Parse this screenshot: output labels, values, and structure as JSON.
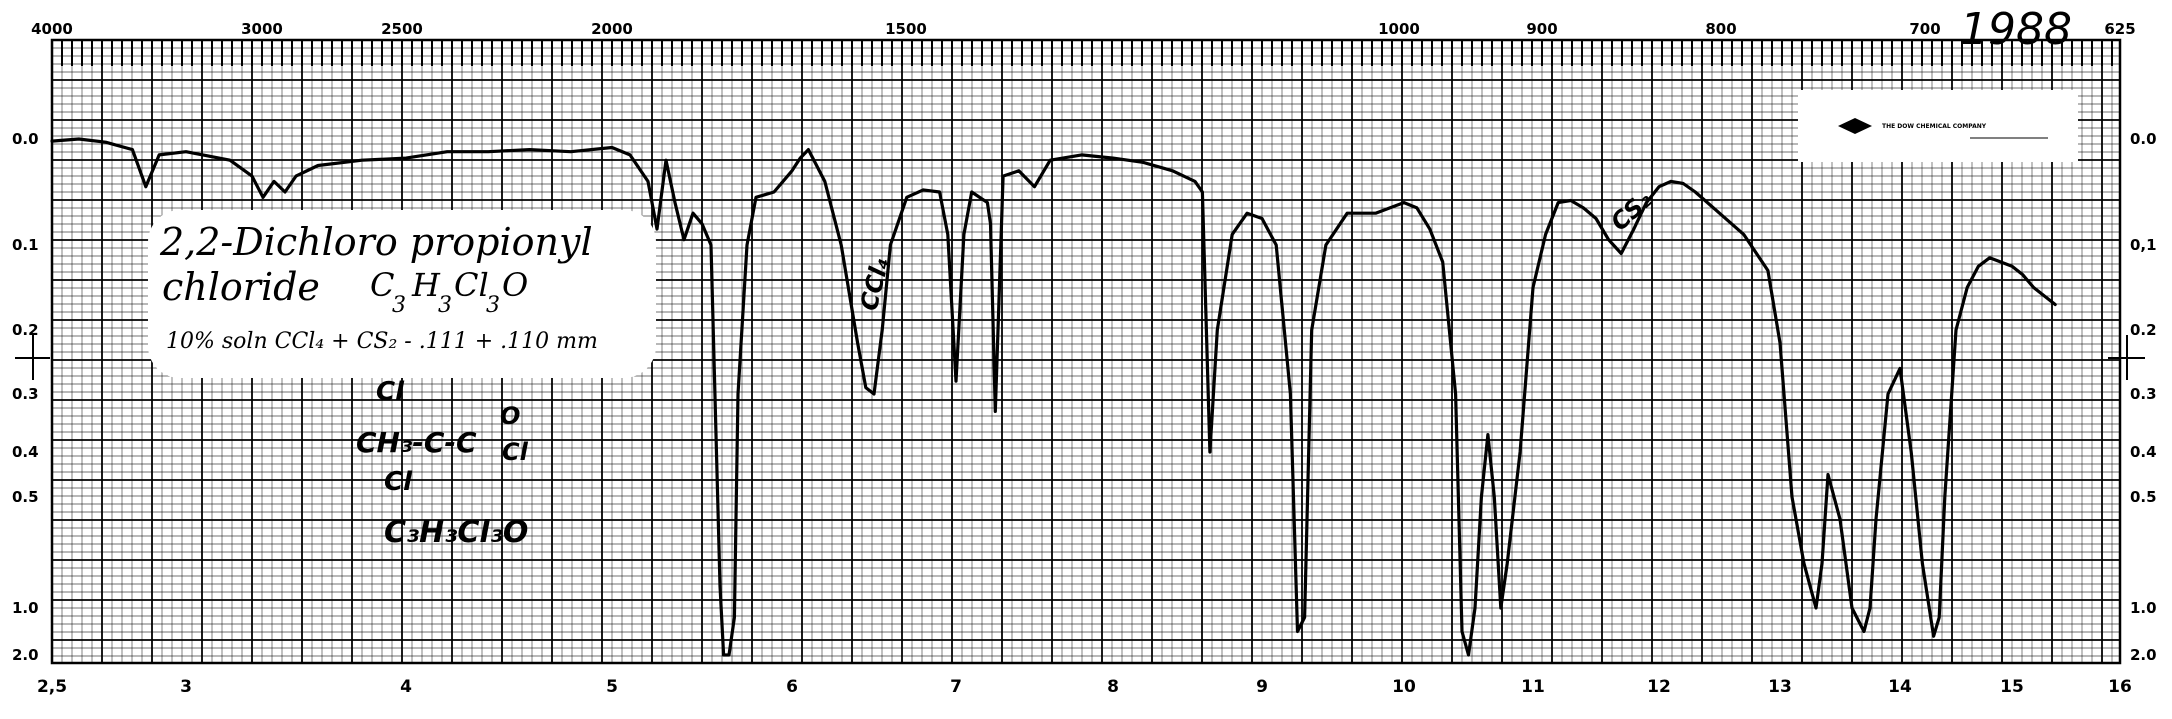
{
  "chart_data": {
    "type": "line",
    "x_bottom_ticks": [
      "2,5",
      "3",
      "4",
      "5",
      "6",
      "7",
      "8",
      "9",
      "10",
      "11",
      "12",
      "13",
      "14",
      "15",
      "16"
    ],
    "x_top_ticks": [
      "4000",
      "3000",
      "2500",
      "2000",
      "1500",
      "1000",
      "900",
      "800",
      "700",
      "625"
    ],
    "y_left_ticks": [
      "0.0",
      "0.1",
      "0.2",
      "0.3",
      "0.4",
      "0.5",
      "1.0",
      "2.0"
    ],
    "y_right_ticks": [
      "0.0",
      "0,1",
      "0.2",
      "0.3",
      "0.4",
      "0.5",
      "1.0",
      "2.0"
    ],
    "xlim": [
      2.5,
      16
    ],
    "ylim": [
      0,
      2.0
    ],
    "grid": true,
    "series": [
      {
        "x": [
          2.5,
          2.6,
          2.7,
          2.8,
          2.85,
          2.9,
          3.0,
          3.2,
          3.3,
          3.35,
          3.4,
          3.45,
          3.5,
          3.6,
          3.8,
          4.0,
          4.2,
          4.4,
          4.6,
          4.8,
          5.0,
          5.1,
          5.2,
          5.25,
          5.3,
          5.35,
          5.4,
          5.45,
          5.5,
          5.55,
          5.6,
          5.62,
          5.65,
          5.68,
          5.7,
          5.75,
          5.8,
          5.9,
          6.0,
          6.05,
          6.1,
          6.2,
          6.3,
          6.4,
          6.45,
          6.5,
          6.55,
          6.6,
          6.7,
          6.8,
          6.9,
          6.95,
          7.0,
          7.05,
          7.1,
          7.2,
          7.22,
          7.25,
          7.3,
          7.4,
          7.5,
          7.6,
          7.8,
          8.0,
          8.2,
          8.4,
          8.55,
          8.6,
          8.65,
          8.7,
          8.8,
          8.9,
          9.0,
          9.1,
          9.2,
          9.25,
          9.3,
          9.35,
          9.45,
          9.6,
          9.8,
          10.0,
          10.1,
          10.2,
          10.3,
          10.4,
          10.45,
          10.5,
          10.55,
          10.6,
          10.65,
          10.7,
          10.75,
          10.8,
          10.9,
          11.0,
          11.1,
          11.2,
          11.3,
          11.4,
          11.5,
          11.6,
          11.7,
          11.8,
          11.9,
          12.0,
          12.1,
          12.2,
          12.3,
          12.5,
          12.7,
          12.9,
          13.0,
          13.1,
          13.2,
          13.3,
          13.35,
          13.4,
          13.5,
          13.6,
          13.7,
          13.75,
          13.8,
          13.9,
          14.0,
          14.1,
          14.2,
          14.3,
          14.35,
          14.4,
          14.5,
          14.6,
          14.7,
          14.8,
          14.9,
          15.0,
          15.1,
          15.2,
          15.3,
          15.4
        ],
        "y": [
          0.002,
          0.0,
          0.003,
          0.01,
          0.045,
          0.015,
          0.012,
          0.02,
          0.035,
          0.055,
          0.04,
          0.05,
          0.035,
          0.025,
          0.02,
          0.018,
          0.012,
          0.012,
          0.01,
          0.012,
          0.008,
          0.015,
          0.04,
          0.085,
          0.02,
          0.06,
          0.095,
          0.07,
          0.08,
          0.1,
          0.9,
          2.0,
          2.0,
          1.2,
          0.3,
          0.1,
          0.055,
          0.05,
          0.03,
          0.018,
          0.01,
          0.04,
          0.1,
          0.22,
          0.29,
          0.3,
          0.2,
          0.1,
          0.055,
          0.048,
          0.05,
          0.09,
          0.28,
          0.09,
          0.05,
          0.06,
          0.08,
          0.33,
          0.035,
          0.03,
          0.045,
          0.02,
          0.015,
          0.018,
          0.022,
          0.03,
          0.04,
          0.05,
          0.4,
          0.2,
          0.09,
          0.07,
          0.075,
          0.1,
          0.3,
          1.5,
          1.2,
          0.2,
          0.1,
          0.07,
          0.07,
          0.06,
          0.065,
          0.085,
          0.12,
          0.3,
          1.5,
          2.0,
          1.0,
          0.5,
          0.37,
          0.5,
          1.0,
          0.8,
          0.4,
          0.15,
          0.09,
          0.06,
          0.058,
          0.065,
          0.075,
          0.095,
          0.11,
          0.085,
          0.06,
          0.045,
          0.04,
          0.042,
          0.05,
          0.07,
          0.09,
          0.13,
          0.22,
          0.5,
          0.8,
          1.0,
          0.8,
          0.45,
          0.6,
          1.0,
          1.5,
          1.0,
          0.6,
          0.3,
          0.26,
          0.4,
          0.8,
          1.6,
          1.2,
          0.5,
          0.2,
          0.15,
          0.125,
          0.115,
          0.12,
          0.125,
          0.135,
          0.15,
          0.16,
          0.17
        ]
      }
    ]
  },
  "page": {
    "year_note": "1988",
    "stamp_logo_text": "THE DOW CHEMICAL COMPANY",
    "annotations": {
      "title_line1": "2,2-Dichloro propionyl",
      "title_line2": "chloride",
      "formula_C": "C",
      "formula_C_sub": "3",
      "formula_H": "H",
      "formula_H_sub": "3",
      "formula_Cl": "Cl",
      "formula_Cl_sub": "3",
      "formula_O": "O",
      "conditions": "10% soln CCl₄ + CS₂ - .111 + .110 mm",
      "struct_top_cl": "Cl",
      "struct_main": "CH₃-C-C",
      "struct_o": "O",
      "struct_right_cl": "Cl",
      "struct_bottom_cl": "Cl",
      "struct_formula": "C₃H₃Cl₃O",
      "band_ccl4": "CCl₄",
      "band_cs2": "CS₂"
    }
  }
}
